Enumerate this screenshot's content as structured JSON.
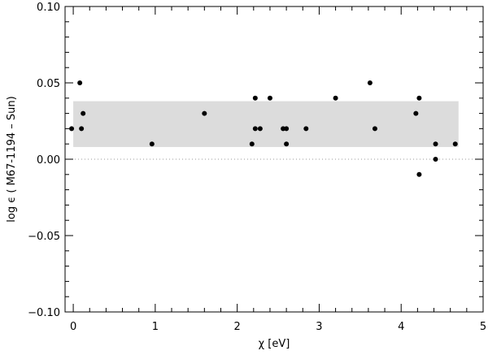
{
  "chart_data": {
    "type": "scatter",
    "title": "",
    "xlabel": "χ [eV]",
    "ylabel": "log ϵ ( M67-1194   – Sun)",
    "xlim": [
      -0.1,
      5.0
    ],
    "ylim": [
      -0.1,
      0.1
    ],
    "xticks": [
      "0",
      "1",
      "2",
      "3",
      "4",
      "5"
    ],
    "yticks": [
      "0.10",
      "0.05",
      "0.00",
      "−0.05",
      "−0.10"
    ],
    "grid": false,
    "band": {
      "y_min": 0.008,
      "y_max": 0.038,
      "x_min": 0.0,
      "x_max": 4.7,
      "color": "#dcdcdc"
    },
    "reference_line": {
      "y": 0.0,
      "style": "dotted"
    },
    "marker_color": "#000000",
    "points": [
      {
        "x": -0.02,
        "y": 0.02
      },
      {
        "x": 0.08,
        "y": 0.05
      },
      {
        "x": 0.1,
        "y": 0.02
      },
      {
        "x": 0.12,
        "y": 0.03
      },
      {
        "x": 0.96,
        "y": 0.01
      },
      {
        "x": 1.6,
        "y": 0.03
      },
      {
        "x": 2.18,
        "y": 0.01
      },
      {
        "x": 2.22,
        "y": 0.04
      },
      {
        "x": 2.22,
        "y": 0.02
      },
      {
        "x": 2.28,
        "y": 0.02
      },
      {
        "x": 2.4,
        "y": 0.04
      },
      {
        "x": 2.56,
        "y": 0.02
      },
      {
        "x": 2.6,
        "y": 0.01
      },
      {
        "x": 2.6,
        "y": 0.02
      },
      {
        "x": 2.84,
        "y": 0.02
      },
      {
        "x": 3.2,
        "y": 0.04
      },
      {
        "x": 3.62,
        "y": 0.05
      },
      {
        "x": 3.68,
        "y": 0.02
      },
      {
        "x": 4.18,
        "y": 0.03
      },
      {
        "x": 4.22,
        "y": 0.04
      },
      {
        "x": 4.22,
        "y": -0.01
      },
      {
        "x": 4.42,
        "y": 0.01
      },
      {
        "x": 4.42,
        "y": 0.0
      },
      {
        "x": 4.66,
        "y": 0.01
      }
    ]
  }
}
